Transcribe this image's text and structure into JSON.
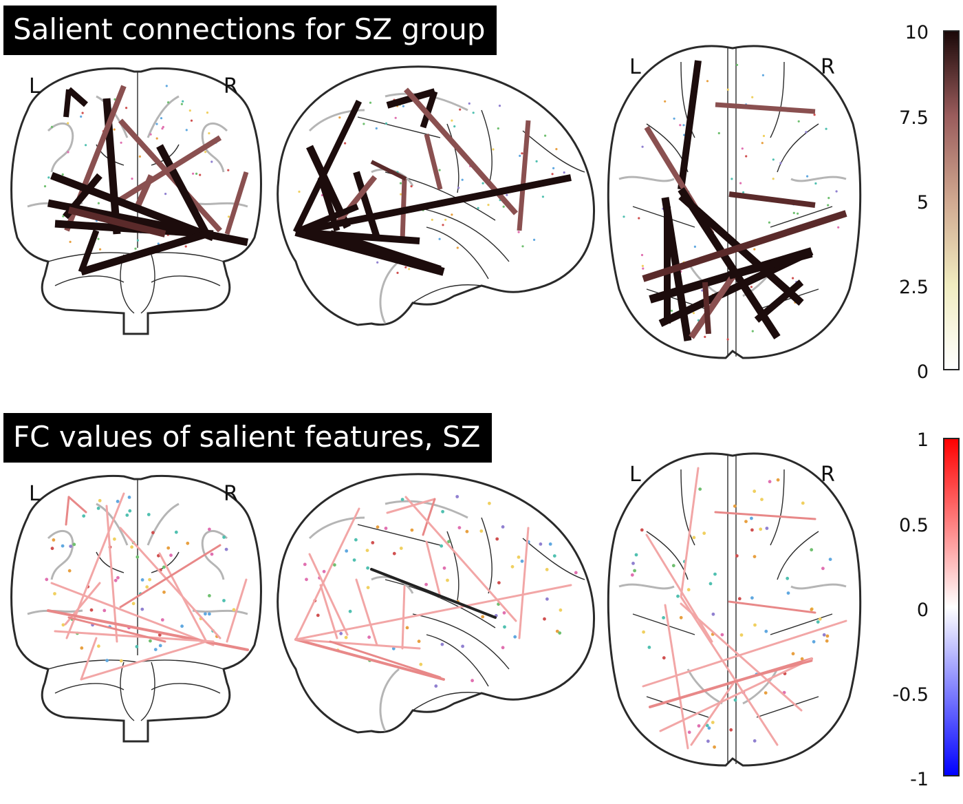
{
  "panels": {
    "top": {
      "title": "Salient connections for SZ group",
      "colormap": "brown",
      "colorbar": {
        "ticks": [
          "10",
          "7.5",
          "5",
          "2.5",
          "0"
        ],
        "range": [
          0,
          10
        ]
      }
    },
    "bottom": {
      "title": "FC values of salient features, SZ",
      "colormap": "bwr",
      "colorbar": {
        "ticks": [
          "1",
          "0.5",
          "0",
          "-0.5",
          "-1"
        ],
        "range": [
          -1,
          1
        ]
      }
    }
  },
  "side_labels": {
    "left": "L",
    "right": "R"
  },
  "views": [
    "coronal",
    "sagittal",
    "axial"
  ],
  "colors": {
    "conn_dark": "#1c0c0c",
    "conn_mid": "#5a2a2a",
    "conn_light": "#8a5050",
    "fc_pink": "#f2a6a6",
    "fc_pink_dark": "#e88888",
    "title_bg": "#000000",
    "node_colors": [
      "#f0d060",
      "#e8a040",
      "#70c070",
      "#60a8e0",
      "#e070b0",
      "#d05050",
      "#9080d0",
      "#50c0b0"
    ]
  }
}
